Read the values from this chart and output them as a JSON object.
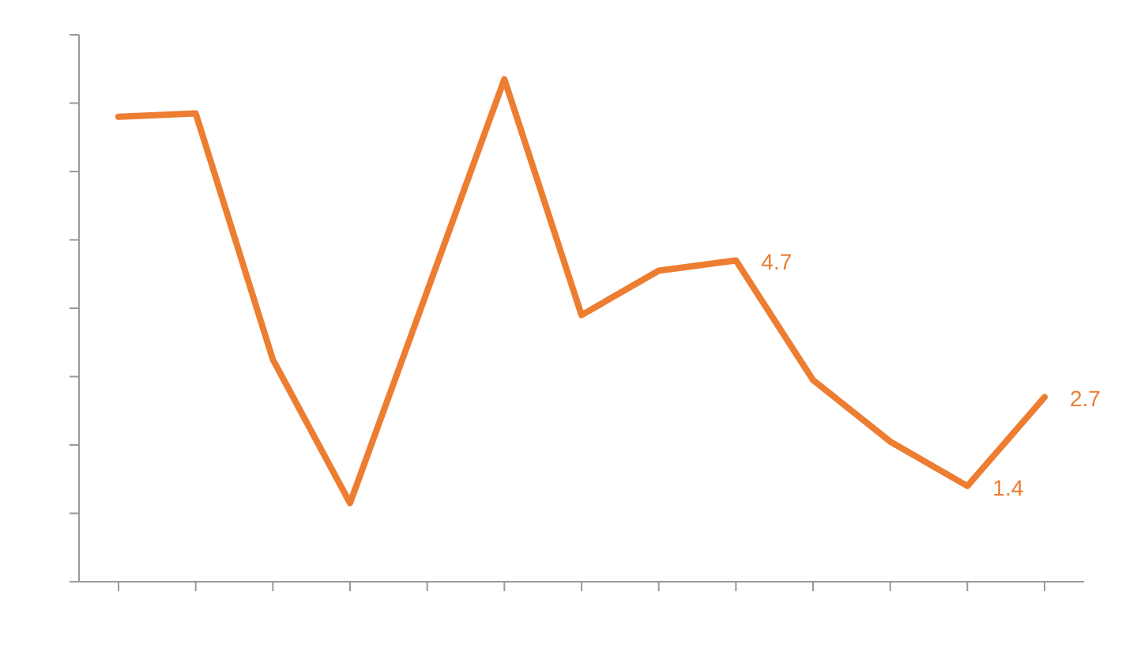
{
  "chart_data": {
    "type": "line",
    "categories": [
      null,
      null,
      null,
      null,
      null,
      null,
      null,
      null,
      null,
      null,
      null,
      null,
      null
    ],
    "series": [
      {
        "color": "#ed7d31",
        "values": [
          6.8,
          6.85,
          3.25,
          1.15,
          4.25,
          7.35,
          3.9,
          4.55,
          4.7,
          2.95,
          2.05,
          1.4,
          2.7
        ],
        "value_labels": [
          null,
          null,
          null,
          null,
          null,
          null,
          null,
          null,
          "4.7",
          null,
          null,
          "1.4",
          "2.7"
        ]
      }
    ],
    "ylim": [
      0,
      8
    ],
    "yticks": [
      {
        "value": 0,
        "label": null
      },
      {
        "value": 1,
        "label": null
      },
      {
        "value": 2,
        "label": null
      },
      {
        "value": 3,
        "label": null
      },
      {
        "value": 4,
        "label": null
      },
      {
        "value": 5,
        "label": null
      },
      {
        "value": 6,
        "label": null
      },
      {
        "value": 7,
        "label": null
      },
      {
        "value": 8,
        "label": null
      }
    ],
    "grid": false,
    "legend": false,
    "marker": "none",
    "line_style": "solid"
  }
}
